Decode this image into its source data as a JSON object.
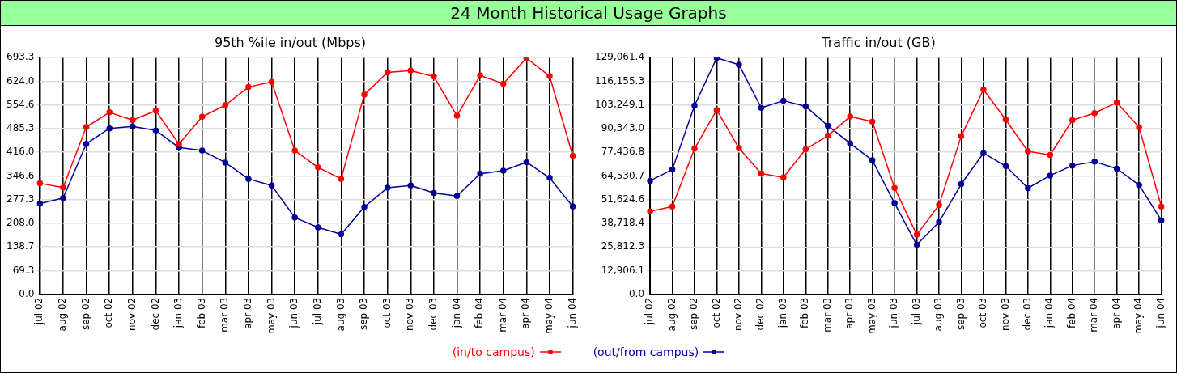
{
  "chart_data": [
    {
      "type": "line",
      "title": "95th %ile in/out (Mbps)",
      "categories": [
        "jul 02",
        "aug 02",
        "sep 02",
        "oct 02",
        "nov 02",
        "dec 02",
        "jan 03",
        "feb 03",
        "mar 03",
        "apr 03",
        "may 03",
        "jun 03",
        "jul 03",
        "aug 03",
        "sep 03",
        "oct 03",
        "nov 03",
        "dec 03",
        "jan 04",
        "feb 04",
        "mar 04",
        "apr 04",
        "may 04",
        "jun 04"
      ],
      "series": [
        {
          "name": "(in/to campus)",
          "color": "#ff0000",
          "values": [
            325,
            313,
            490,
            533,
            510,
            538,
            440,
            520,
            554,
            607,
            622,
            421,
            372,
            338,
            585,
            650,
            655,
            638,
            523,
            641,
            617,
            692,
            639,
            406
          ]
        },
        {
          "name": "(out/from campus)",
          "color": "#000099",
          "values": [
            266,
            282,
            441,
            486,
            492,
            480,
            430,
            421,
            386,
            338,
            319,
            225,
            196,
            176,
            256,
            312,
            319,
            297,
            288,
            353,
            362,
            387,
            341,
            257
          ]
        }
      ],
      "ylim": [
        0,
        693.3
      ],
      "yticks": [
        {
          "value": 0,
          "label": "0.0"
        },
        {
          "value": 69.3,
          "label": "69.3"
        },
        {
          "value": 138.7,
          "label": "138.7"
        },
        {
          "value": 208,
          "label": "208.0"
        },
        {
          "value": 277.3,
          "label": "277.3"
        },
        {
          "value": 346.6,
          "label": "346.6"
        },
        {
          "value": 416,
          "label": "416.0"
        },
        {
          "value": 485.3,
          "label": "485.3"
        },
        {
          "value": 554.6,
          "label": "554.6"
        },
        {
          "value": 624,
          "label": "624.0"
        },
        {
          "value": 693.3,
          "label": "693.3"
        }
      ],
      "grid": true,
      "marker": "circle",
      "line_style": "solid",
      "legend": "bottom",
      "annotations": [
        "24 Month Historical Usage Graphs"
      ]
    },
    {
      "type": "line",
      "title": "Traffic in/out (GB)",
      "categories": [
        "jul 02",
        "aug 02",
        "sep 02",
        "oct 02",
        "nov 02",
        "dec 02",
        "jan 03",
        "feb 03",
        "mar 03",
        "apr 03",
        "may 03",
        "jun 03",
        "jul 03",
        "aug 03",
        "sep 03",
        "oct 03",
        "nov 03",
        "dec 03",
        "jan 04",
        "feb 04",
        "mar 04",
        "apr 04",
        "may 04",
        "jun 04"
      ],
      "series": [
        {
          "color": "#ff0000",
          "values": [
            45200,
            47900,
            79400,
            100500,
            79700,
            65800,
            63800,
            79100,
            86500,
            96900,
            94200,
            58000,
            32500,
            48700,
            86300,
            111600,
            95300,
            78000,
            76000,
            95000,
            98800,
            104600,
            91100,
            47900
          ]
        },
        {
          "color": "#000099",
          "values": [
            61900,
            68000,
            102900,
            128900,
            125200,
            101700,
            105600,
            102500,
            91900,
            82300,
            73100,
            49700,
            27000,
            39400,
            60100,
            77000,
            69900,
            57900,
            64800,
            70200,
            72300,
            68500,
            59600,
            40400
          ]
        }
      ],
      "ylim": [
        0,
        129061.4
      ],
      "yticks": [
        {
          "value": 0,
          "label": "0.0"
        },
        {
          "value": 12906.1,
          "label": "12,906.1"
        },
        {
          "value": 25812.3,
          "label": "25,812.3"
        },
        {
          "value": 38718.4,
          "label": "38,718.4"
        },
        {
          "value": 51624.6,
          "label": "51,624.6"
        },
        {
          "value": 64530.7,
          "label": "64,530.7"
        },
        {
          "value": 77436.8,
          "label": "77,436.8"
        },
        {
          "value": 90343,
          "label": "90,343.0"
        },
        {
          "value": 103249.1,
          "label": "103,249.1"
        },
        {
          "value": 116155.3,
          "label": "116,155.3"
        },
        {
          "value": 129061.4,
          "label": "129,061.4"
        }
      ],
      "grid": true,
      "marker": "circle",
      "line_style": "solid"
    }
  ]
}
